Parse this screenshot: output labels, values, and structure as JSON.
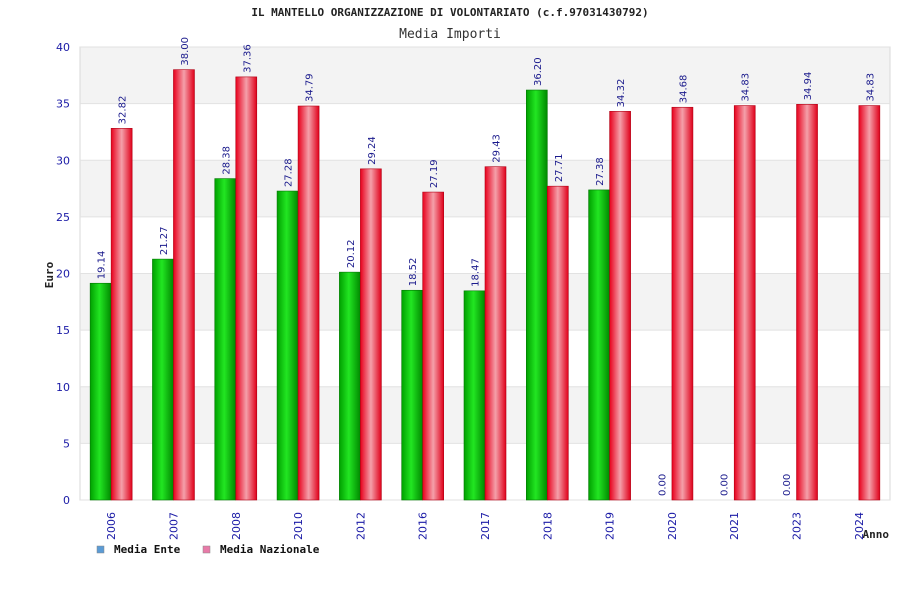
{
  "chart_data": {
    "type": "bar",
    "title": "IL MANTELLO ORGANIZZAZIONE DI VOLONTARIATO (c.f.97031430792)",
    "subtitle": "Media Importi",
    "xlabel": "Anno",
    "ylabel": "Euro",
    "ylim": [
      0,
      40
    ],
    "yticks": [
      0,
      5,
      10,
      15,
      20,
      25,
      30,
      35,
      40
    ],
    "categories": [
      "2006",
      "2007",
      "2008",
      "2010",
      "2012",
      "2016",
      "2017",
      "2018",
      "2019",
      "2020",
      "2021",
      "2023",
      "2024"
    ],
    "series": [
      {
        "name": "Media Ente",
        "color": "#00b000",
        "legend_color": "#5b9bd5",
        "values": [
          19.14,
          21.27,
          28.38,
          27.28,
          20.12,
          18.52,
          18.47,
          36.2,
          27.38,
          0,
          0,
          0,
          null
        ],
        "labels": [
          "19.14",
          "21.27",
          "28.38",
          "27.28",
          "20.12",
          "18.52",
          "18.47",
          "36.20",
          "27.38",
          "0.00",
          "0.00",
          "0.00",
          ""
        ]
      },
      {
        "name": "Media Nazionale",
        "color": "#e8001c",
        "legend_color": "#e87aa8",
        "values": [
          32.82,
          38.0,
          37.36,
          34.79,
          29.24,
          27.19,
          29.43,
          27.71,
          34.32,
          34.68,
          34.83,
          34.94,
          34.83
        ],
        "labels": [
          "32.82",
          "38.00",
          "37.36",
          "34.79",
          "29.24",
          "27.19",
          "29.43",
          "27.71",
          "34.32",
          "34.68",
          "34.83",
          "34.94",
          "34.83"
        ]
      }
    ],
    "grid": true,
    "legend_position": "bottom-left"
  }
}
